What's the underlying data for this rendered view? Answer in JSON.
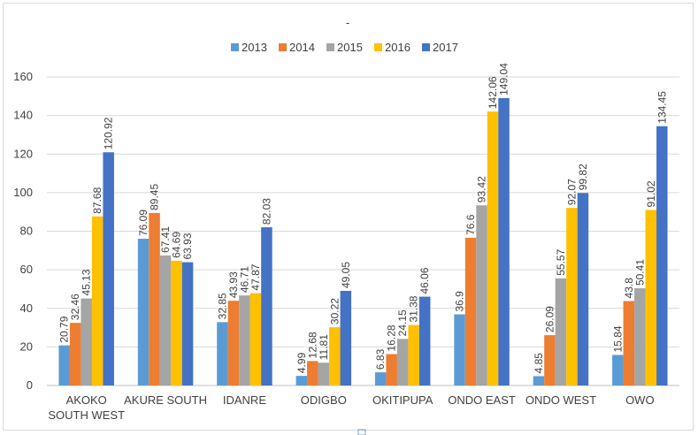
{
  "chart_data": {
    "type": "bar",
    "title": "-",
    "xlabel": "",
    "ylabel": "",
    "ylim": [
      0,
      160
    ],
    "yticks": [
      0,
      20,
      40,
      60,
      80,
      100,
      120,
      140,
      160
    ],
    "grid": true,
    "legend_position": "top-center",
    "categories": [
      [
        "AKOKO",
        "SOUTH WEST"
      ],
      [
        "AKURE SOUTH"
      ],
      [
        "IDANRE"
      ],
      [
        "ODIGBO"
      ],
      [
        "OKITIPUPA"
      ],
      [
        "ONDO EAST"
      ],
      [
        "ONDO WEST"
      ],
      [
        "OWO"
      ]
    ],
    "series": [
      {
        "name": "2013",
        "color": "#5b9bd5",
        "values": [
          20.79,
          76.09,
          32.85,
          4.99,
          6.83,
          36.9,
          4.85,
          15.84
        ]
      },
      {
        "name": "2014",
        "color": "#ed7d31",
        "values": [
          32.46,
          89.45,
          43.93,
          12.68,
          16.28,
          76.6,
          26.09,
          43.8
        ]
      },
      {
        "name": "2015",
        "color": "#a5a5a5",
        "values": [
          45.13,
          67.41,
          46.71,
          11.81,
          24.15,
          93.42,
          55.57,
          50.41
        ]
      },
      {
        "name": "2016",
        "color": "#ffc000",
        "values": [
          87.68,
          64.69,
          47.87,
          30.22,
          31.38,
          142.06,
          92.07,
          91.02
        ]
      },
      {
        "name": "2017",
        "color": "#4472c4",
        "values": [
          120.92,
          63.93,
          82.03,
          49.05,
          46.06,
          149.04,
          99.82,
          134.45
        ]
      }
    ]
  }
}
